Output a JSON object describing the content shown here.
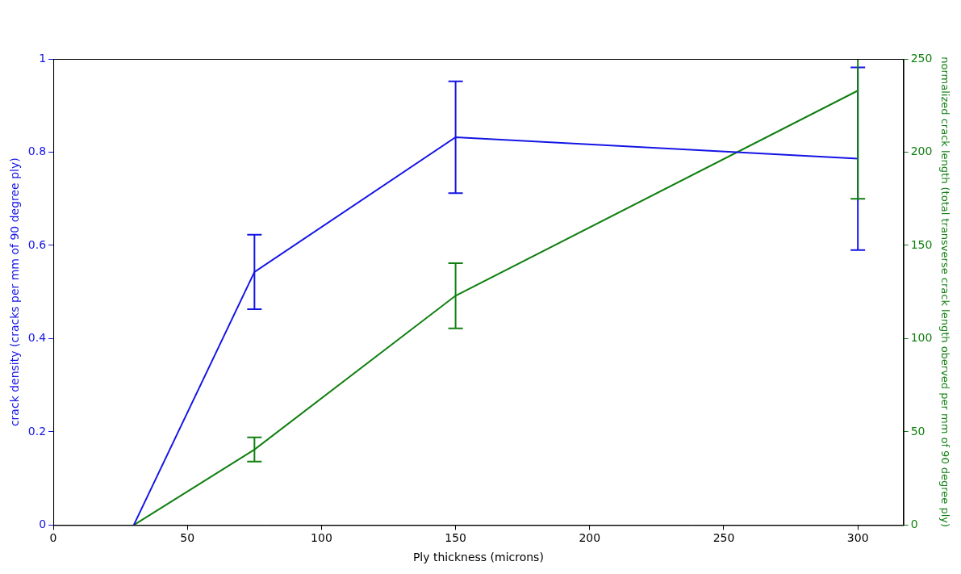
{
  "chart_data": {
    "type": "line",
    "x_label": "Ply thickness (microns)",
    "y_label": "crack density (cracks per mm of 90 degree ply)",
    "y2_label": "normalized crack length (total transverse crack length oberved per mm of 90 degree ply)",
    "x": [
      30,
      75,
      150,
      300
    ],
    "xlim": [
      0,
      317
    ],
    "xticks": [
      0,
      50,
      100,
      150,
      200,
      250,
      300
    ],
    "ylim": [
      0,
      1
    ],
    "yticks": [
      0,
      0.2,
      0.4,
      0.6,
      0.8,
      1
    ],
    "y2lim": [
      0,
      250
    ],
    "y2ticks": [
      0,
      50,
      100,
      150,
      200,
      250
    ],
    "grid": false,
    "series": [
      {
        "color": "#1414e6",
        "values": [
          0,
          0.543,
          0.832,
          0.786
        ],
        "errors": [
          0,
          0.08,
          0.12,
          0.196
        ],
        "marker": "none",
        "line_style": "solid"
      },
      {
        "color": "#118011",
        "values": [
          0,
          40.5,
          123,
          233
        ],
        "errors": [
          0,
          6.5,
          17.5,
          58
        ],
        "marker": "none",
        "line_style": "solid",
        "axis": "y2"
      }
    ]
  }
}
